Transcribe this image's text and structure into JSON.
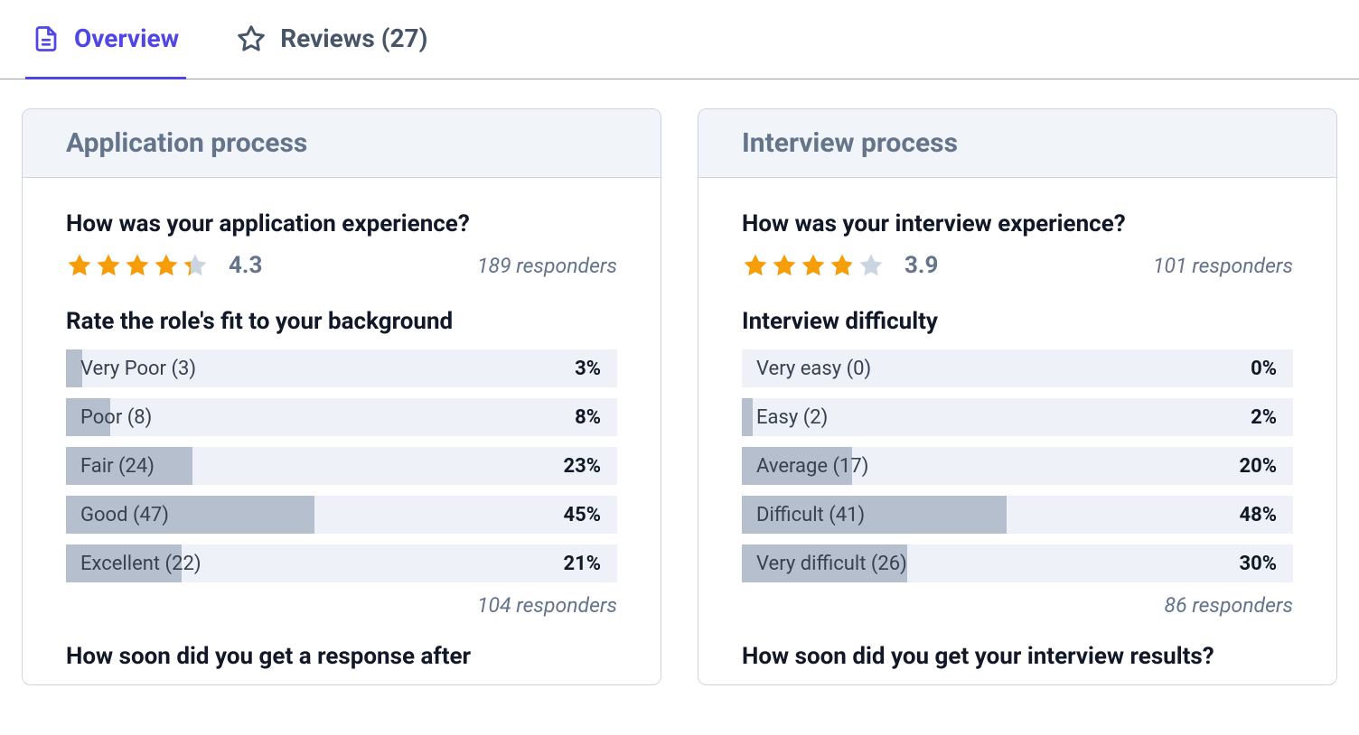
{
  "colors": {
    "accent": "#4f46e5",
    "star_fill": "#f59e0b",
    "star_empty": "#cbd5e1",
    "bar_fill": "#b6bfce",
    "bar_track": "#eef2f8",
    "muted_text": "#64748b",
    "border": "#cbd5e1"
  },
  "tabs": {
    "overview": {
      "label": "Overview",
      "active": true
    },
    "reviews": {
      "label": "Reviews (27)",
      "active": false
    }
  },
  "cards": {
    "application": {
      "header": "Application process",
      "q1": {
        "question": "How was your application experience?",
        "rating": 4.3,
        "rating_label": "4.3",
        "responders": "189 responders"
      },
      "q2": {
        "question": "Rate the role's fit to your background",
        "rows": [
          {
            "label": "Very Poor (3)",
            "pct_label": "3%",
            "pct": 3
          },
          {
            "label": "Poor (8)",
            "pct_label": "8%",
            "pct": 8
          },
          {
            "label": "Fair (24)",
            "pct_label": "23%",
            "pct": 23
          },
          {
            "label": "Good (47)",
            "pct_label": "45%",
            "pct": 45
          },
          {
            "label": "Excellent (22)",
            "pct_label": "21%",
            "pct": 21
          }
        ],
        "responders": "104 responders"
      },
      "q3": {
        "question": "How soon did you get a response after"
      }
    },
    "interview": {
      "header": "Interview process",
      "q1": {
        "question": "How was your interview experience?",
        "rating": 3.9,
        "rating_label": "3.9",
        "responders": "101 responders"
      },
      "q2": {
        "question": "Interview difficulty",
        "rows": [
          {
            "label": "Very easy (0)",
            "pct_label": "0%",
            "pct": 0
          },
          {
            "label": "Easy (2)",
            "pct_label": "2%",
            "pct": 2
          },
          {
            "label": "Average (17)",
            "pct_label": "20%",
            "pct": 20
          },
          {
            "label": "Difficult (41)",
            "pct_label": "48%",
            "pct": 48
          },
          {
            "label": "Very difficult (26)",
            "pct_label": "30%",
            "pct": 30
          }
        ],
        "responders": "86 responders"
      },
      "q3": {
        "question": "How soon did you get your interview results?"
      }
    }
  }
}
